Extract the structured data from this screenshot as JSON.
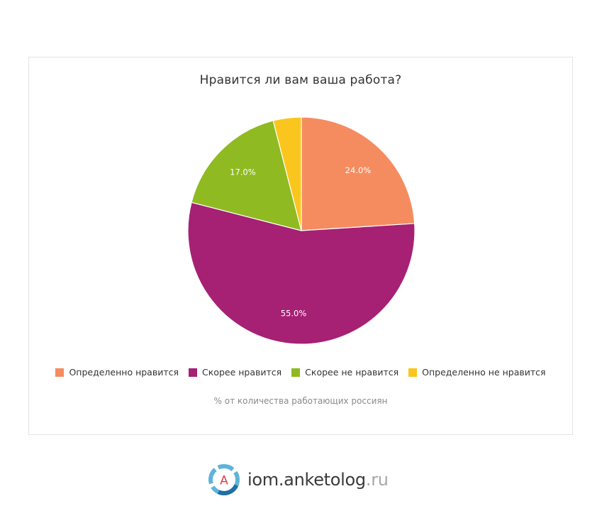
{
  "chart_data": {
    "type": "pie",
    "title": "Нравится ли вам ваша работа?",
    "subtitle": "% от количества работающих россиян",
    "slices": [
      {
        "label": "Определенно нравится",
        "value": 24.0,
        "display": "24.0%",
        "color": "#F58C5F"
      },
      {
        "label": "Скорее нравится",
        "value": 55.0,
        "display": "55.0%",
        "color": "#A62074"
      },
      {
        "label": "Скорее не нравится",
        "value": 17.0,
        "display": "17.0%",
        "color": "#8FBA22"
      },
      {
        "label": "Определенно не нравится",
        "value": 4.0,
        "display": "",
        "color": "#FAC61E"
      }
    ],
    "legend_position": "bottom"
  },
  "brand": {
    "logo_letter": "A",
    "domain": "iom.anketolog",
    "tld": ".ru"
  }
}
